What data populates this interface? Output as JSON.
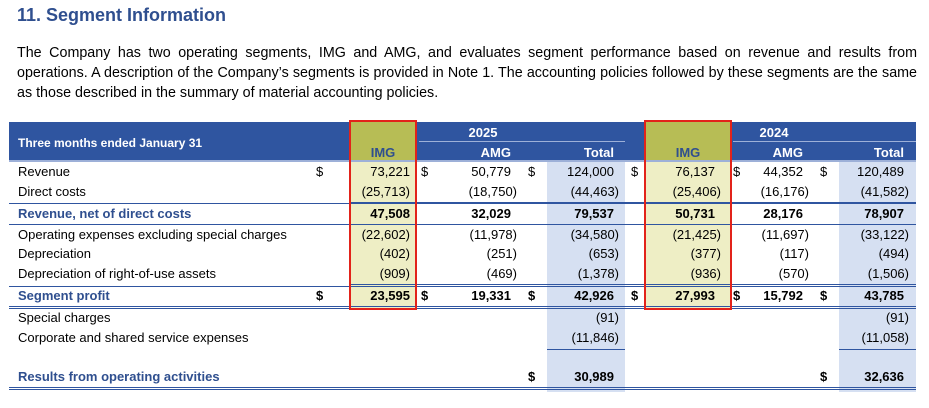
{
  "title": "11. Segment Information",
  "paragraph": "The Company has two operating segments, IMG and AMG, and evaluates segment performance based on revenue and results from operations. A description of the Company’s segments is provided in Note 1. The accounting policies followed by these segments are the same as those described in the summary of material accounting policies.",
  "table": {
    "period_label": "Three months ended January 31",
    "year_2025": "2025",
    "year_2024": "2024",
    "columns": [
      "IMG",
      "AMG",
      "Total",
      "IMG",
      "AMG",
      "Total"
    ],
    "dollar": "$",
    "rows": {
      "revenue": {
        "label": "Revenue",
        "v": [
          "73,221",
          "50,779",
          "124,000",
          "76,137",
          "44,352",
          "120,489"
        ]
      },
      "direct_costs": {
        "label": "Direct costs",
        "v": [
          "(25,713)",
          "(18,750)",
          "(44,463)",
          "(25,406)",
          "(16,176)",
          "(41,582)"
        ]
      },
      "revenue_net": {
        "label": "Revenue, net of direct costs",
        "v": [
          "47,508",
          "32,029",
          "79,537",
          "50,731",
          "28,176",
          "78,907"
        ]
      },
      "opex": {
        "label": "Operating expenses excluding special charges",
        "v": [
          "(22,602)",
          "(11,978)",
          "(34,580)",
          "(21,425)",
          "(11,697)",
          "(33,122)"
        ]
      },
      "depreciation": {
        "label": "Depreciation",
        "v": [
          "(402)",
          "(251)",
          "(653)",
          "(377)",
          "(117)",
          "(494)"
        ]
      },
      "dep_rou": {
        "label": "Depreciation of right-of-use assets",
        "v": [
          "(909)",
          "(469)",
          "(1,378)",
          "(936)",
          "(570)",
          "(1,506)"
        ]
      },
      "segment_profit": {
        "label": "Segment profit",
        "v": [
          "23,595",
          "19,331",
          "42,926",
          "27,993",
          "15,792",
          "43,785"
        ]
      },
      "special_charges": {
        "label": "Special charges",
        "v": [
          "(91)",
          "(91)"
        ]
      },
      "corporate": {
        "label": "Corporate and shared service expenses",
        "v": [
          "(11,846)",
          "(11,058)"
        ]
      },
      "results": {
        "label": "Results from operating activities",
        "v": [
          "30,989",
          "32,636"
        ]
      }
    }
  }
}
